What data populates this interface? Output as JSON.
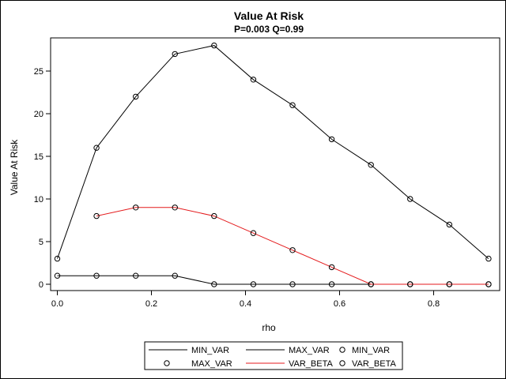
{
  "chart_data": {
    "type": "line",
    "title": "Value At Risk",
    "subtitle": "P=0.003 Q=0.99",
    "xlabel": "rho",
    "ylabel": "Value At Risk",
    "xlim": [
      0,
      0.92
    ],
    "ylim": [
      -1,
      28
    ],
    "xticks": [
      "0.0",
      "0.2",
      "0.4",
      "0.6",
      "0.8"
    ],
    "yticks": [
      "0",
      "5",
      "10",
      "15",
      "20",
      "25"
    ],
    "grid": false,
    "legend_position": "bottom",
    "series": [
      {
        "name": "MIN_VAR",
        "color": "#000000",
        "x": [
          0,
          0.0833,
          0.1667,
          0.25,
          0.3333,
          0.4167,
          0.5,
          0.5833,
          0.6667,
          0.75,
          0.8333,
          0.9167
        ],
        "values": [
          1,
          1,
          1,
          1,
          0,
          0,
          0,
          0,
          0,
          0,
          0,
          0
        ]
      },
      {
        "name": "MAX_VAR",
        "color": "#000000",
        "x": [
          0,
          0.0833,
          0.1667,
          0.25,
          0.3333,
          0.4167,
          0.5,
          0.5833,
          0.6667,
          0.75,
          0.8333,
          0.9167
        ],
        "values": [
          3,
          16,
          22,
          27,
          28,
          24,
          21,
          17,
          14,
          10,
          7,
          3
        ]
      },
      {
        "name": "VAR_BETA",
        "color": "#e41a1c",
        "x": [
          0.0833,
          0.1667,
          0.25,
          0.3333,
          0.4167,
          0.5,
          0.5833,
          0.6667,
          0.75,
          0.8333,
          0.9167
        ],
        "values": [
          8,
          9,
          9,
          8,
          6,
          4,
          2,
          0,
          0,
          0,
          0
        ]
      }
    ],
    "legend_entries": [
      {
        "label": "MIN_VAR",
        "kind": "line",
        "color": "#000000"
      },
      {
        "label": "MAX_VAR",
        "kind": "line",
        "color": "#000000"
      },
      {
        "label": "MIN_VAR",
        "kind": "marker",
        "color": "#000000"
      },
      {
        "label": "MAX_VAR",
        "kind": "marker",
        "color": "#000000"
      },
      {
        "label": "VAR_BETA",
        "kind": "line",
        "color": "#e41a1c"
      },
      {
        "label": "VAR_BETA",
        "kind": "marker",
        "color": "#000000"
      }
    ]
  }
}
